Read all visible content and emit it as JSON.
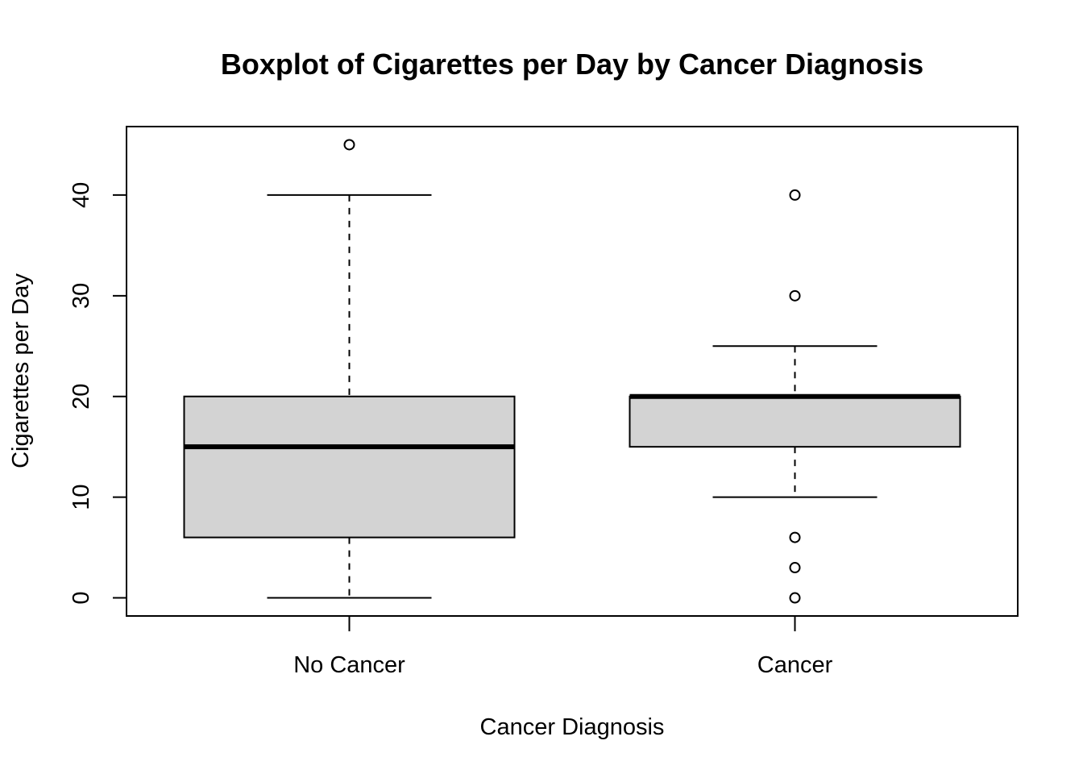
{
  "chart_data": {
    "type": "boxplot",
    "title": "Boxplot of Cigarettes per Day by Cancer Diagnosis",
    "xlabel": "Cancer Diagnosis",
    "ylabel": "Cigarettes per Day",
    "ylim": [
      -1.8,
      46.8
    ],
    "yticks": [
      0,
      10,
      20,
      30,
      40
    ],
    "grid": false,
    "legend": "none",
    "colors": {
      "box_fill": "#d3d3d3",
      "stroke": "#000000"
    },
    "groups": [
      {
        "name": "No Cancer",
        "whisker_low": 0,
        "q1": 6,
        "median": 15,
        "q3": 20,
        "whisker_high": 40,
        "outliers": [
          45
        ]
      },
      {
        "name": "Cancer",
        "whisker_low": 10,
        "q1": 15,
        "median": 20,
        "q3": 20,
        "whisker_high": 25,
        "outliers": [
          40,
          30,
          6,
          3,
          0
        ]
      }
    ]
  }
}
